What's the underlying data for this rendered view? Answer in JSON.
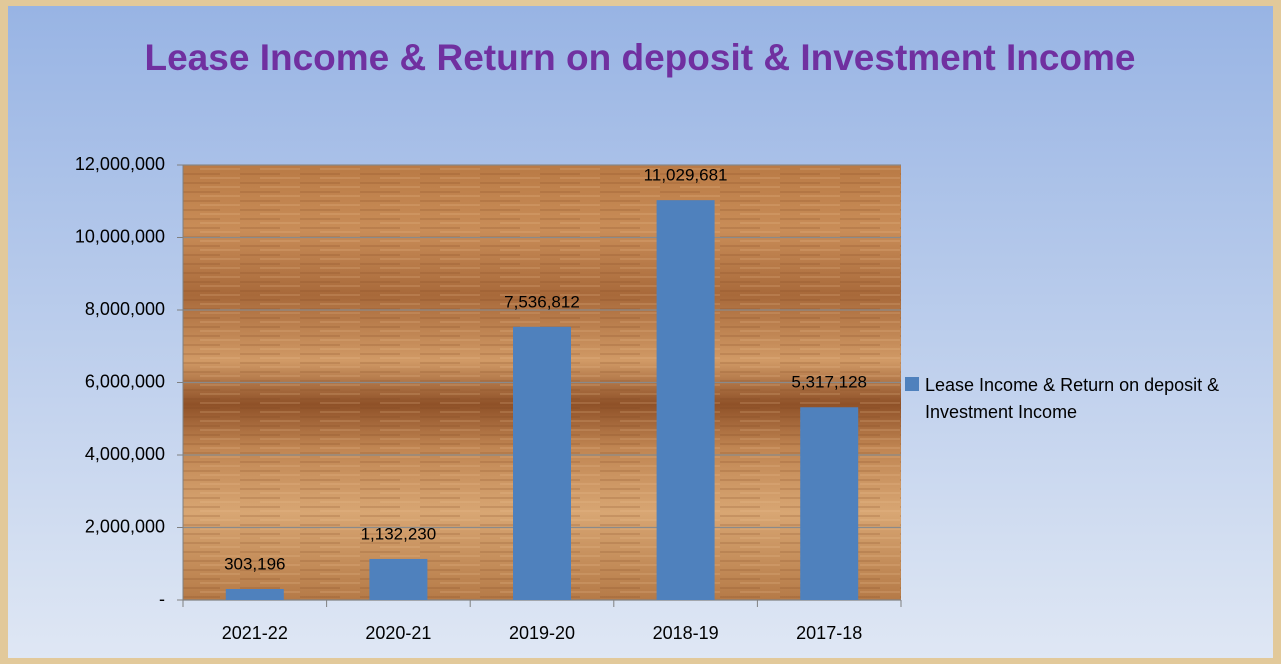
{
  "chart_data": {
    "type": "bar",
    "title": "Lease Income & Return on deposit & Investment Income",
    "categories": [
      "2021-22",
      "2020-21",
      "2019-20",
      "2018-19",
      "2017-18"
    ],
    "series": [
      {
        "name": "Lease Income & Return on deposit & Investment Income",
        "color": "#4f81bd",
        "values": [
          303196,
          1132230,
          7536812,
          11029681,
          5317128
        ],
        "value_labels": [
          "303,196",
          "1,132,230",
          "7,536,812",
          "11,029,681",
          "5,317,128"
        ]
      }
    ],
    "ylim": [
      0,
      12000000
    ],
    "yticks": [
      {
        "value": 0,
        "label": "-"
      },
      {
        "value": 2000000,
        "label": "2,000,000"
      },
      {
        "value": 4000000,
        "label": "4,000,000"
      },
      {
        "value": 6000000,
        "label": "6,000,000"
      },
      {
        "value": 8000000,
        "label": "8,000,000"
      },
      {
        "value": 10000000,
        "label": "10,000,000"
      },
      {
        "value": 12000000,
        "label": "12,000,000"
      }
    ],
    "grid": true,
    "legend": "right"
  }
}
